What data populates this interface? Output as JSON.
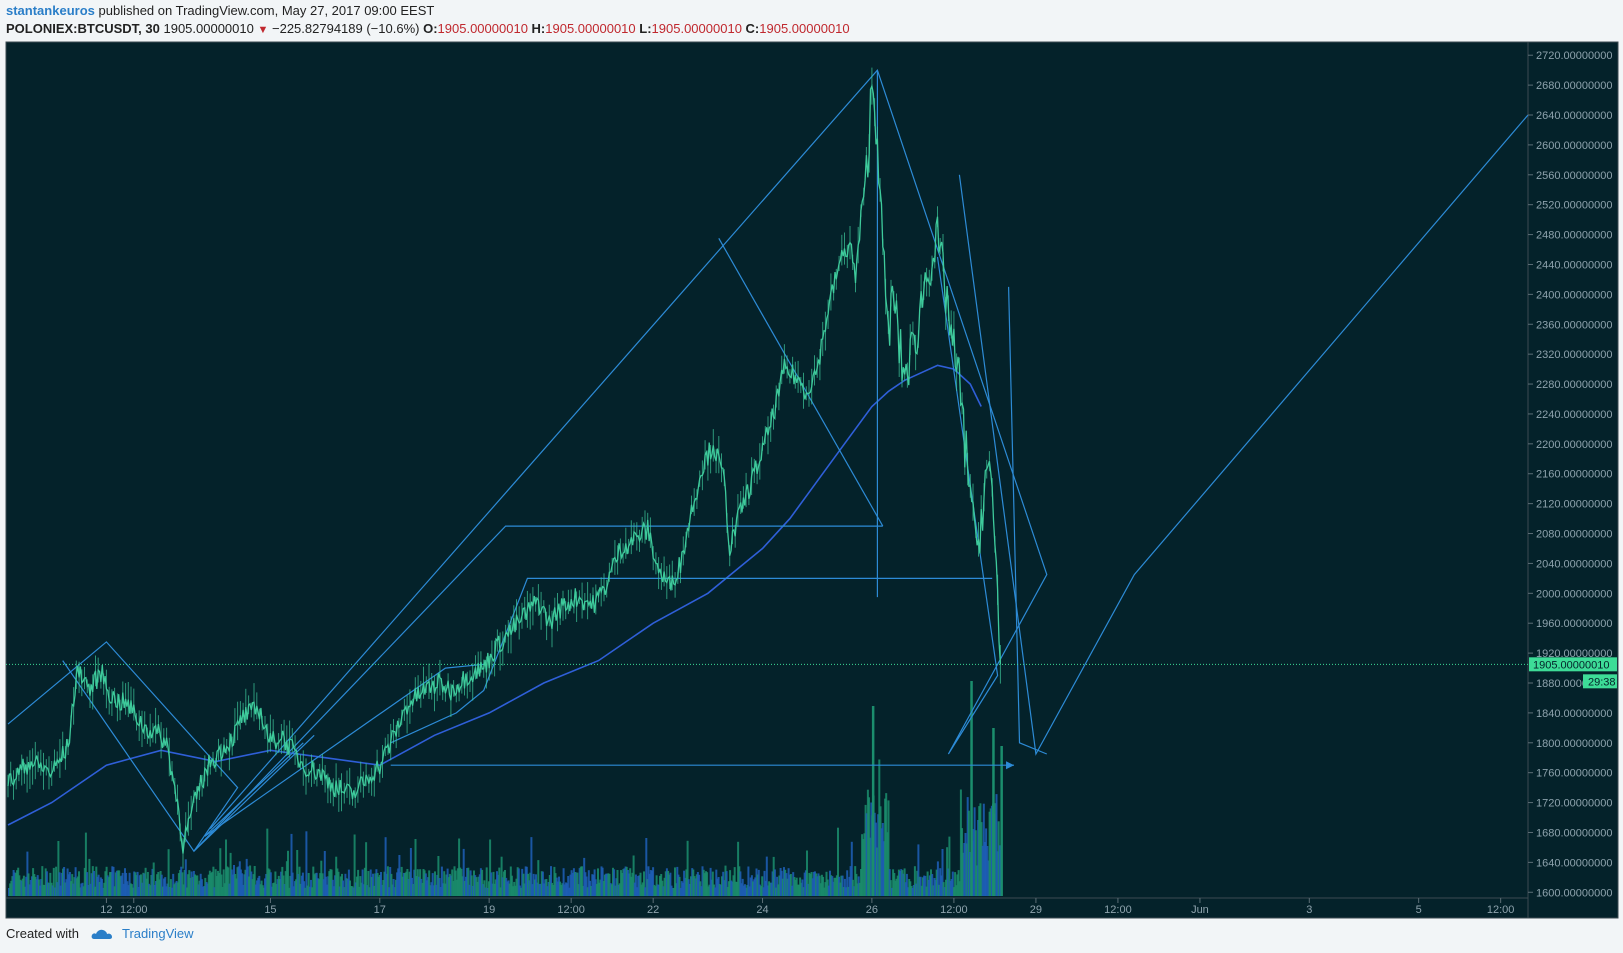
{
  "header": {
    "author": "stantankeuros",
    "published_text": "published on TradingView.com, May 27, 2017 09:00 EEST",
    "symbol": "POLONIEX:BTCUSDT, 30",
    "last": "1905.00000010",
    "change_arrow": "▼",
    "change": "−225.82794189 (−10.6%)",
    "o_label": "O:",
    "o_value": "1905.00000010",
    "h_label": "H:",
    "h_value": "1905.00000010",
    "l_label": "L:",
    "l_value": "1905.00000010",
    "c_label": "C:",
    "c_value": "1905.00000010"
  },
  "footer": {
    "created_with": "Created with",
    "brand": "TradingView"
  },
  "colors": {
    "background": "#04222a",
    "price_line": "#3ecb9c",
    "drawing": "#2d8bd6",
    "moving_average": "#2f5fd8",
    "volume_up": "#1b8e6d",
    "volume_down": "#1f5fb8",
    "label_green": "#3ddc97",
    "axis_text": "#8ea3ad",
    "change_red": "#c0282e"
  },
  "chart_data": {
    "type": "candlestick",
    "symbol": "POLONIEX:BTCUSDT",
    "interval": "30",
    "y_ticks": [
      "2720.00000000",
      "2680.00000000",
      "2640.00000000",
      "2600.00000000",
      "2560.00000000",
      "2520.00000000",
      "2480.00000000",
      "2440.00000000",
      "2400.00000000",
      "2360.00000000",
      "2320.00000000",
      "2280.00000000",
      "2240.00000000",
      "2200.00000000",
      "2160.00000000",
      "2120.00000000",
      "2080.00000000",
      "2040.00000000",
      "2000.00000000",
      "1960.00000000",
      "1920.00000000",
      "1880.00000000",
      "1840.00000000",
      "1800.00000000",
      "1760.00000000",
      "1720.00000000",
      "1680.00000000",
      "1640.00000000",
      "1600.00000000"
    ],
    "ylim": [
      1595,
      2735
    ],
    "x_ticks": [
      "12",
      "12:00",
      "15",
      "17",
      "19",
      "12:00",
      "22",
      "24",
      "26",
      "12:00",
      "29",
      "12:00",
      "Jun",
      "3",
      "5",
      "12:00"
    ],
    "x_tick_days": [
      12,
      12.5,
      15,
      17,
      19,
      20.5,
      22,
      24,
      26,
      27.5,
      29,
      30.5,
      32,
      34,
      36,
      37.5
    ],
    "xlim": [
      10.2,
      38.0
    ],
    "last_price_label": "1905.00000010",
    "countdown_label": "29:38",
    "last_price": 1905.0000001,
    "price_path": [
      [
        10.2,
        1745
      ],
      [
        10.6,
        1775
      ],
      [
        11.0,
        1760
      ],
      [
        11.3,
        1795
      ],
      [
        11.4,
        1860
      ],
      [
        11.5,
        1900
      ],
      [
        11.7,
        1870
      ],
      [
        11.9,
        1895
      ],
      [
        12.1,
        1860
      ],
      [
        12.4,
        1850
      ],
      [
        12.7,
        1820
      ],
      [
        12.9,
        1815
      ],
      [
        13.1,
        1800
      ],
      [
        13.2,
        1760
      ],
      [
        13.3,
        1720
      ],
      [
        13.4,
        1665
      ],
      [
        13.5,
        1690
      ],
      [
        13.7,
        1740
      ],
      [
        13.9,
        1775
      ],
      [
        14.1,
        1790
      ],
      [
        14.3,
        1805
      ],
      [
        14.5,
        1835
      ],
      [
        14.8,
        1845
      ],
      [
        15.0,
        1800
      ],
      [
        15.2,
        1810
      ],
      [
        15.4,
        1790
      ],
      [
        15.6,
        1770
      ],
      [
        15.9,
        1760
      ],
      [
        16.2,
        1740
      ],
      [
        16.5,
        1730
      ],
      [
        16.8,
        1755
      ],
      [
        17.0,
        1770
      ],
      [
        17.2,
        1800
      ],
      [
        17.5,
        1850
      ],
      [
        17.8,
        1870
      ],
      [
        18.1,
        1880
      ],
      [
        18.3,
        1870
      ],
      [
        18.6,
        1890
      ],
      [
        18.9,
        1900
      ],
      [
        19.1,
        1925
      ],
      [
        19.4,
        1950
      ],
      [
        19.7,
        1975
      ],
      [
        19.9,
        1990
      ],
      [
        20.1,
        1960
      ],
      [
        20.3,
        1980
      ],
      [
        20.6,
        1995
      ],
      [
        20.9,
        1985
      ],
      [
        21.1,
        2005
      ],
      [
        21.4,
        2060
      ],
      [
        21.7,
        2075
      ],
      [
        21.9,
        2085
      ],
      [
        22.1,
        2030
      ],
      [
        22.3,
        2010
      ],
      [
        22.5,
        2040
      ],
      [
        22.7,
        2110
      ],
      [
        22.9,
        2170
      ],
      [
        23.1,
        2200
      ],
      [
        23.3,
        2150
      ],
      [
        23.4,
        2060
      ],
      [
        23.6,
        2110
      ],
      [
        23.8,
        2150
      ],
      [
        24.0,
        2190
      ],
      [
        24.2,
        2240
      ],
      [
        24.4,
        2300
      ],
      [
        24.6,
        2290
      ],
      [
        24.8,
        2270
      ],
      [
        25.0,
        2300
      ],
      [
        25.2,
        2380
      ],
      [
        25.4,
        2440
      ],
      [
        25.6,
        2470
      ],
      [
        25.7,
        2420
      ],
      [
        25.8,
        2500
      ],
      [
        25.9,
        2560
      ],
      [
        26.0,
        2680
      ],
      [
        26.1,
        2620
      ],
      [
        26.2,
        2450
      ],
      [
        26.3,
        2350
      ],
      [
        26.4,
        2400
      ],
      [
        26.5,
        2330
      ],
      [
        26.6,
        2290
      ],
      [
        26.8,
        2340
      ],
      [
        27.0,
        2430
      ],
      [
        27.2,
        2470
      ],
      [
        27.4,
        2380
      ],
      [
        27.5,
        2320
      ],
      [
        27.6,
        2280
      ],
      [
        27.7,
        2200
      ],
      [
        27.8,
        2150
      ],
      [
        27.9,
        2050
      ],
      [
        28.0,
        2100
      ],
      [
        28.1,
        2170
      ],
      [
        28.2,
        2130
      ],
      [
        28.3,
        2000
      ],
      [
        28.35,
        1905
      ]
    ],
    "moving_average": [
      [
        10.2,
        1690
      ],
      [
        11.0,
        1720
      ],
      [
        12.0,
        1770
      ],
      [
        13.0,
        1790
      ],
      [
        14.0,
        1775
      ],
      [
        15.0,
        1790
      ],
      [
        16.0,
        1780
      ],
      [
        17.0,
        1770
      ],
      [
        18.0,
        1810
      ],
      [
        19.0,
        1840
      ],
      [
        20.0,
        1880
      ],
      [
        21.0,
        1910
      ],
      [
        22.0,
        1960
      ],
      [
        22.5,
        1980
      ],
      [
        23.0,
        2000
      ],
      [
        23.5,
        2030
      ],
      [
        24.0,
        2060
      ],
      [
        24.5,
        2100
      ],
      [
        25.0,
        2150
      ],
      [
        25.5,
        2200
      ],
      [
        26.0,
        2250
      ],
      [
        26.3,
        2270
      ],
      [
        26.6,
        2285
      ],
      [
        26.9,
        2295
      ],
      [
        27.2,
        2305
      ],
      [
        27.5,
        2300
      ],
      [
        27.8,
        2280
      ],
      [
        28.0,
        2250
      ]
    ],
    "drawings": [
      {
        "kind": "line",
        "points": [
          [
            10.2,
            1825
          ],
          [
            12.0,
            1935
          ],
          [
            14.4,
            1740
          ],
          [
            13.6,
            1655
          ],
          [
            11.2,
            1910
          ]
        ]
      },
      {
        "kind": "line",
        "points": [
          [
            13.6,
            1655
          ],
          [
            15.8,
            1810
          ]
        ]
      },
      {
        "kind": "line",
        "points": [
          [
            13.8,
            1675
          ],
          [
            15.6,
            1800
          ]
        ]
      },
      {
        "kind": "line",
        "points": [
          [
            13.6,
            1655
          ],
          [
            19.3,
            2090
          ],
          [
            26.2,
            2090
          ]
        ]
      },
      {
        "kind": "line",
        "points": [
          [
            13.8,
            1675
          ],
          [
            18.2,
            1900
          ],
          [
            18.9,
            1905
          ]
        ]
      },
      {
        "kind": "line",
        "points": [
          [
            17.2,
            1800
          ],
          [
            18.4,
            1840
          ],
          [
            18.9,
            1870
          ],
          [
            19.7,
            2020
          ],
          [
            28.2,
            2020
          ]
        ]
      },
      {
        "kind": "line",
        "points": [
          [
            13.9,
            1685
          ],
          [
            26.1,
            2700
          ],
          [
            29.2,
            2025
          ],
          [
            27.4,
            1785
          ],
          [
            28.3,
            1890
          ],
          [
            27.2,
            2450
          ]
        ]
      },
      {
        "kind": "line",
        "points": [
          [
            26.1,
            2700
          ],
          [
            26.1,
            1995
          ]
        ]
      },
      {
        "kind": "line",
        "points": [
          [
            23.2,
            2475
          ],
          [
            26.2,
            2090
          ]
        ]
      },
      {
        "kind": "line",
        "points": [
          [
            27.6,
            2560
          ],
          [
            29.0,
            1785
          ],
          [
            30.8,
            2025
          ],
          [
            38.0,
            2640
          ]
        ]
      },
      {
        "kind": "line",
        "points": [
          [
            28.5,
            2410
          ],
          [
            28.7,
            1800
          ],
          [
            29.2,
            1785
          ]
        ]
      },
      {
        "kind": "line",
        "points": [
          [
            17.2,
            1770
          ],
          [
            28.6,
            1770
          ]
        ]
      }
    ]
  }
}
